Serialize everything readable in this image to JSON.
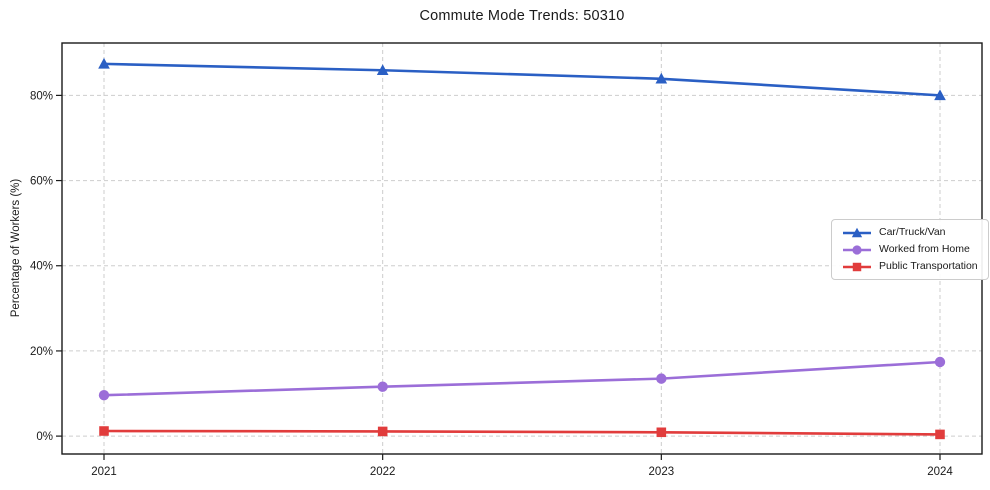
{
  "chart_data": {
    "type": "line",
    "title": "Commute Mode Trends: 50310",
    "xlabel": "",
    "ylabel": "Percentage of Workers (%)",
    "categories": [
      "2021",
      "2022",
      "2023",
      "2024"
    ],
    "series": [
      {
        "name": "Car/Truck/Van",
        "color": "#2a5fc4",
        "marker": "triangle",
        "values": [
          87.4,
          85.9,
          83.9,
          80.0
        ]
      },
      {
        "name": "Worked from Home",
        "color": "#9b6ed8",
        "marker": "circle",
        "values": [
          9.6,
          11.6,
          13.5,
          17.4
        ]
      },
      {
        "name": "Public Transportation",
        "color": "#e13c3c",
        "marker": "square",
        "values": [
          1.2,
          1.1,
          0.9,
          0.4
        ]
      }
    ],
    "yticks": [
      {
        "value": 0,
        "label": "0%"
      },
      {
        "value": 20,
        "label": "20%"
      },
      {
        "value": 40,
        "label": "40%"
      },
      {
        "value": 60,
        "label": "60%"
      },
      {
        "value": 80,
        "label": "80%"
      }
    ],
    "ylim": [
      -4.2,
      92.3
    ],
    "grid": "dashed-both-axes",
    "legend_position": "center-right",
    "style": {
      "background": "#ffffff",
      "axis_color": "#1a1a1a",
      "grid_color": "#cdcdcd",
      "text_color": "#1a1a1a"
    }
  }
}
